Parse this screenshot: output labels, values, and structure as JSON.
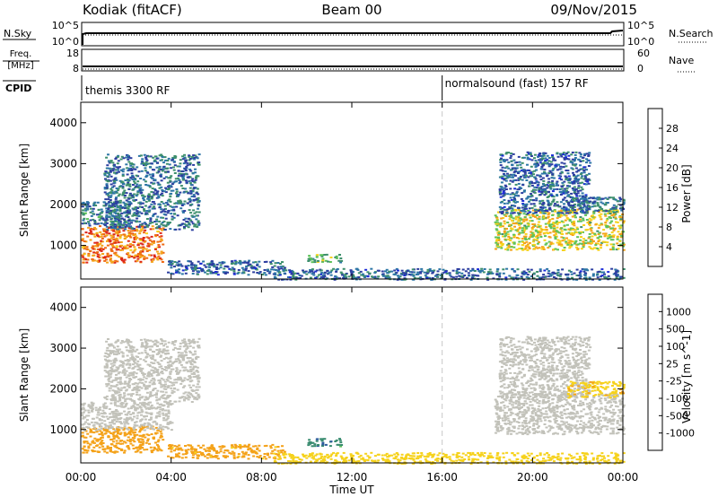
{
  "header": {
    "title": "Kodiak (fitACF)",
    "beam": "Beam 00",
    "date": "09/Nov/2015"
  },
  "top_panels": {
    "nsky": {
      "label": "N.Sky",
      "right_label": "N.Search",
      "left_ticks": [
        "10^5",
        "10^0"
      ],
      "right_ticks": [
        "10^5",
        "10^0"
      ]
    },
    "freq": {
      "label_line1": "Freq.",
      "label_line2": "[MHz]",
      "right_label": "Nave",
      "left_ticks": [
        "18",
        "8"
      ],
      "right_ticks": [
        "60",
        "0"
      ]
    },
    "cpid": {
      "label": "CPID",
      "segments": [
        {
          "name": "themis 3300 RF",
          "start_hour": 0
        },
        {
          "name": "normalsound (fast) 157 RF",
          "start_hour": 16
        }
      ]
    }
  },
  "chart_data": [
    {
      "type": "heatmap",
      "title": "",
      "xlabel": "Time UT",
      "ylabel": "Slant Range [km]",
      "xlim": [
        0,
        24
      ],
      "ylim": [
        180,
        4500
      ],
      "x_ticks": [
        "00:00",
        "04:00",
        "08:00",
        "12:00",
        "16:00",
        "20:00",
        "00:00"
      ],
      "y_ticks": [
        1000,
        2000,
        3000,
        4000
      ],
      "colorbar": {
        "label": "Power [dB]",
        "range": [
          0,
          32
        ],
        "ticks": [
          4,
          8,
          12,
          16,
          20,
          24,
          28
        ],
        "colors": [
          "#1c2cd8",
          "#2c3ea0",
          "#2d76a6",
          "#3d8f6c",
          "#5ec25a",
          "#f6d21c",
          "#f4a21a",
          "#ee6a14",
          "#dd2618"
        ]
      },
      "regions": [
        {
          "t0": 0.0,
          "t1": 3.6,
          "r0": 600,
          "r1": 1500,
          "value": 26
        },
        {
          "t0": 0.0,
          "t1": 2.2,
          "r0": 1500,
          "r1": 2100,
          "value": 10
        },
        {
          "t0": 1.0,
          "t1": 5.2,
          "r0": 1400,
          "r1": 3250,
          "value": 9
        },
        {
          "t0": 3.8,
          "t1": 9.0,
          "r0": 300,
          "r1": 650,
          "value": 8
        },
        {
          "t0": 10.0,
          "t1": 11.5,
          "r0": 600,
          "r1": 800,
          "value": 14
        },
        {
          "t0": 8.5,
          "t1": 24.0,
          "r0": 180,
          "r1": 450,
          "value": 8
        },
        {
          "t0": 18.3,
          "t1": 24.0,
          "r0": 900,
          "r1": 1900,
          "value": 19
        },
        {
          "t0": 18.5,
          "t1": 22.5,
          "r0": 1800,
          "r1": 3300,
          "value": 8
        },
        {
          "t0": 21.5,
          "t1": 24.0,
          "r0": 1800,
          "r1": 2200,
          "value": 9
        }
      ]
    },
    {
      "type": "heatmap",
      "title": "",
      "xlabel": "Time UT",
      "ylabel": "Slant Range [km]",
      "xlim": [
        0,
        24
      ],
      "ylim": [
        180,
        4500
      ],
      "x_ticks": [
        "00:00",
        "04:00",
        "08:00",
        "12:00",
        "16:00",
        "20:00",
        "00:00"
      ],
      "y_ticks": [
        1000,
        2000,
        3000,
        4000
      ],
      "colorbar": {
        "label": "Velocity [m s^-1]",
        "ticks": [
          "1000",
          "500",
          "100",
          "25",
          "-25",
          "-100",
          "-500",
          "-1000"
        ],
        "colors": [
          "#2034b8",
          "#2e5d9c",
          "#3a8c70",
          "#5ec25a",
          "#c2c2ba",
          "#f6d21c",
          "#f4a21a",
          "#ee6a14",
          "#dd2618"
        ]
      },
      "regions": [
        {
          "t0": 0.0,
          "t1": 3.6,
          "r0": 450,
          "r1": 1100,
          "value": -200
        },
        {
          "t0": 0.0,
          "t1": 4.0,
          "r0": 1000,
          "r1": 1700,
          "value": 0
        },
        {
          "t0": 1.0,
          "t1": 5.2,
          "r0": 1700,
          "r1": 3250,
          "value": 0
        },
        {
          "t0": 3.8,
          "t1": 9.0,
          "r0": 300,
          "r1": 650,
          "value": -150
        },
        {
          "t0": 10.0,
          "t1": 11.5,
          "r0": 600,
          "r1": 800,
          "value": 80
        },
        {
          "t0": 8.5,
          "t1": 24.0,
          "r0": 180,
          "r1": 450,
          "value": -60
        },
        {
          "t0": 18.3,
          "t1": 24.0,
          "r0": 900,
          "r1": 1900,
          "value": 0
        },
        {
          "t0": 18.5,
          "t1": 22.5,
          "r0": 1800,
          "r1": 3300,
          "value": 0
        },
        {
          "t0": 21.5,
          "t1": 24.0,
          "r0": 1800,
          "r1": 2200,
          "value": -80
        }
      ]
    }
  ]
}
